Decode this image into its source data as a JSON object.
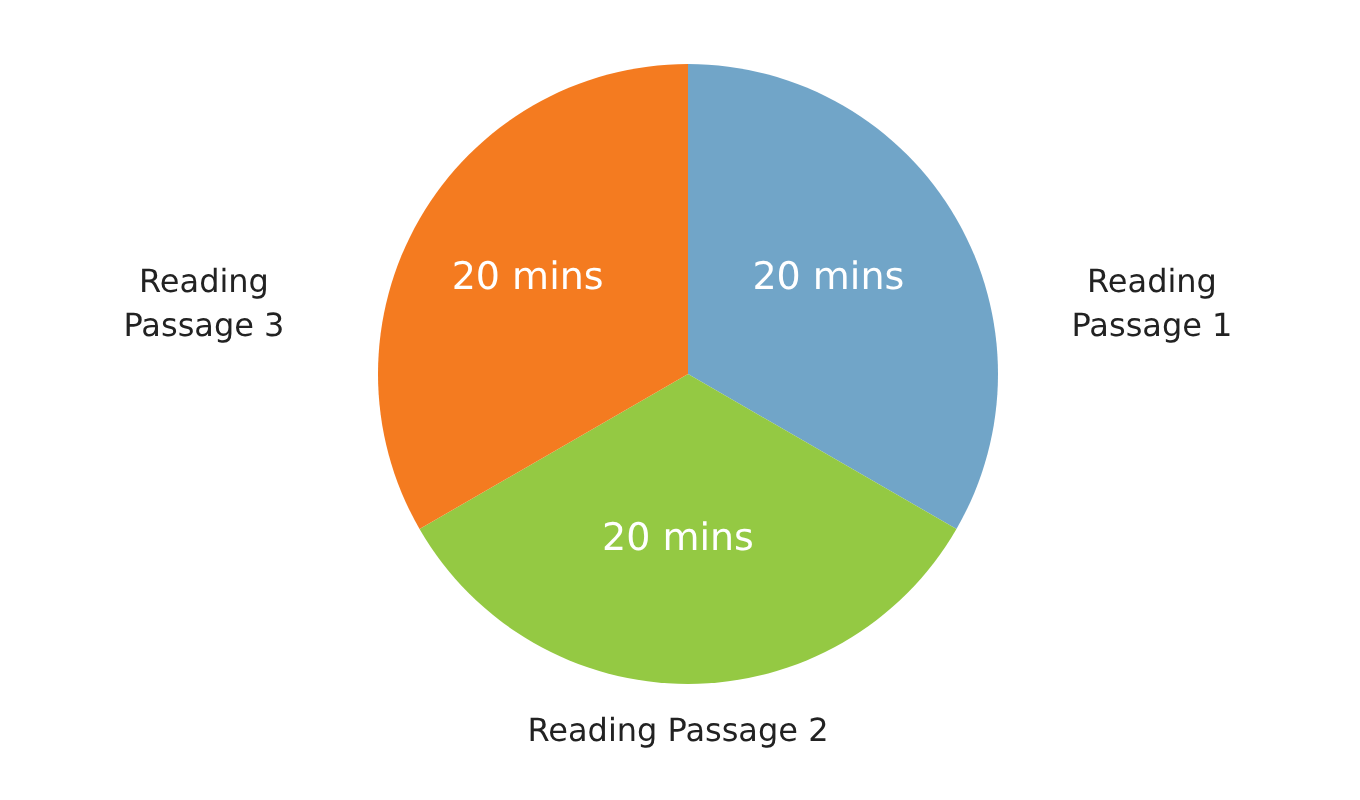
{
  "chart_data": {
    "type": "pie",
    "categories": [
      "Reading Passage 1",
      "Reading Passage 2",
      "Reading Passage 3"
    ],
    "values": [
      20,
      20,
      20
    ],
    "value_labels": [
      "20 mins",
      "20 mins",
      "20 mins"
    ],
    "colors": [
      "#71a5c8",
      "#94c943",
      "#f47b20"
    ]
  }
}
